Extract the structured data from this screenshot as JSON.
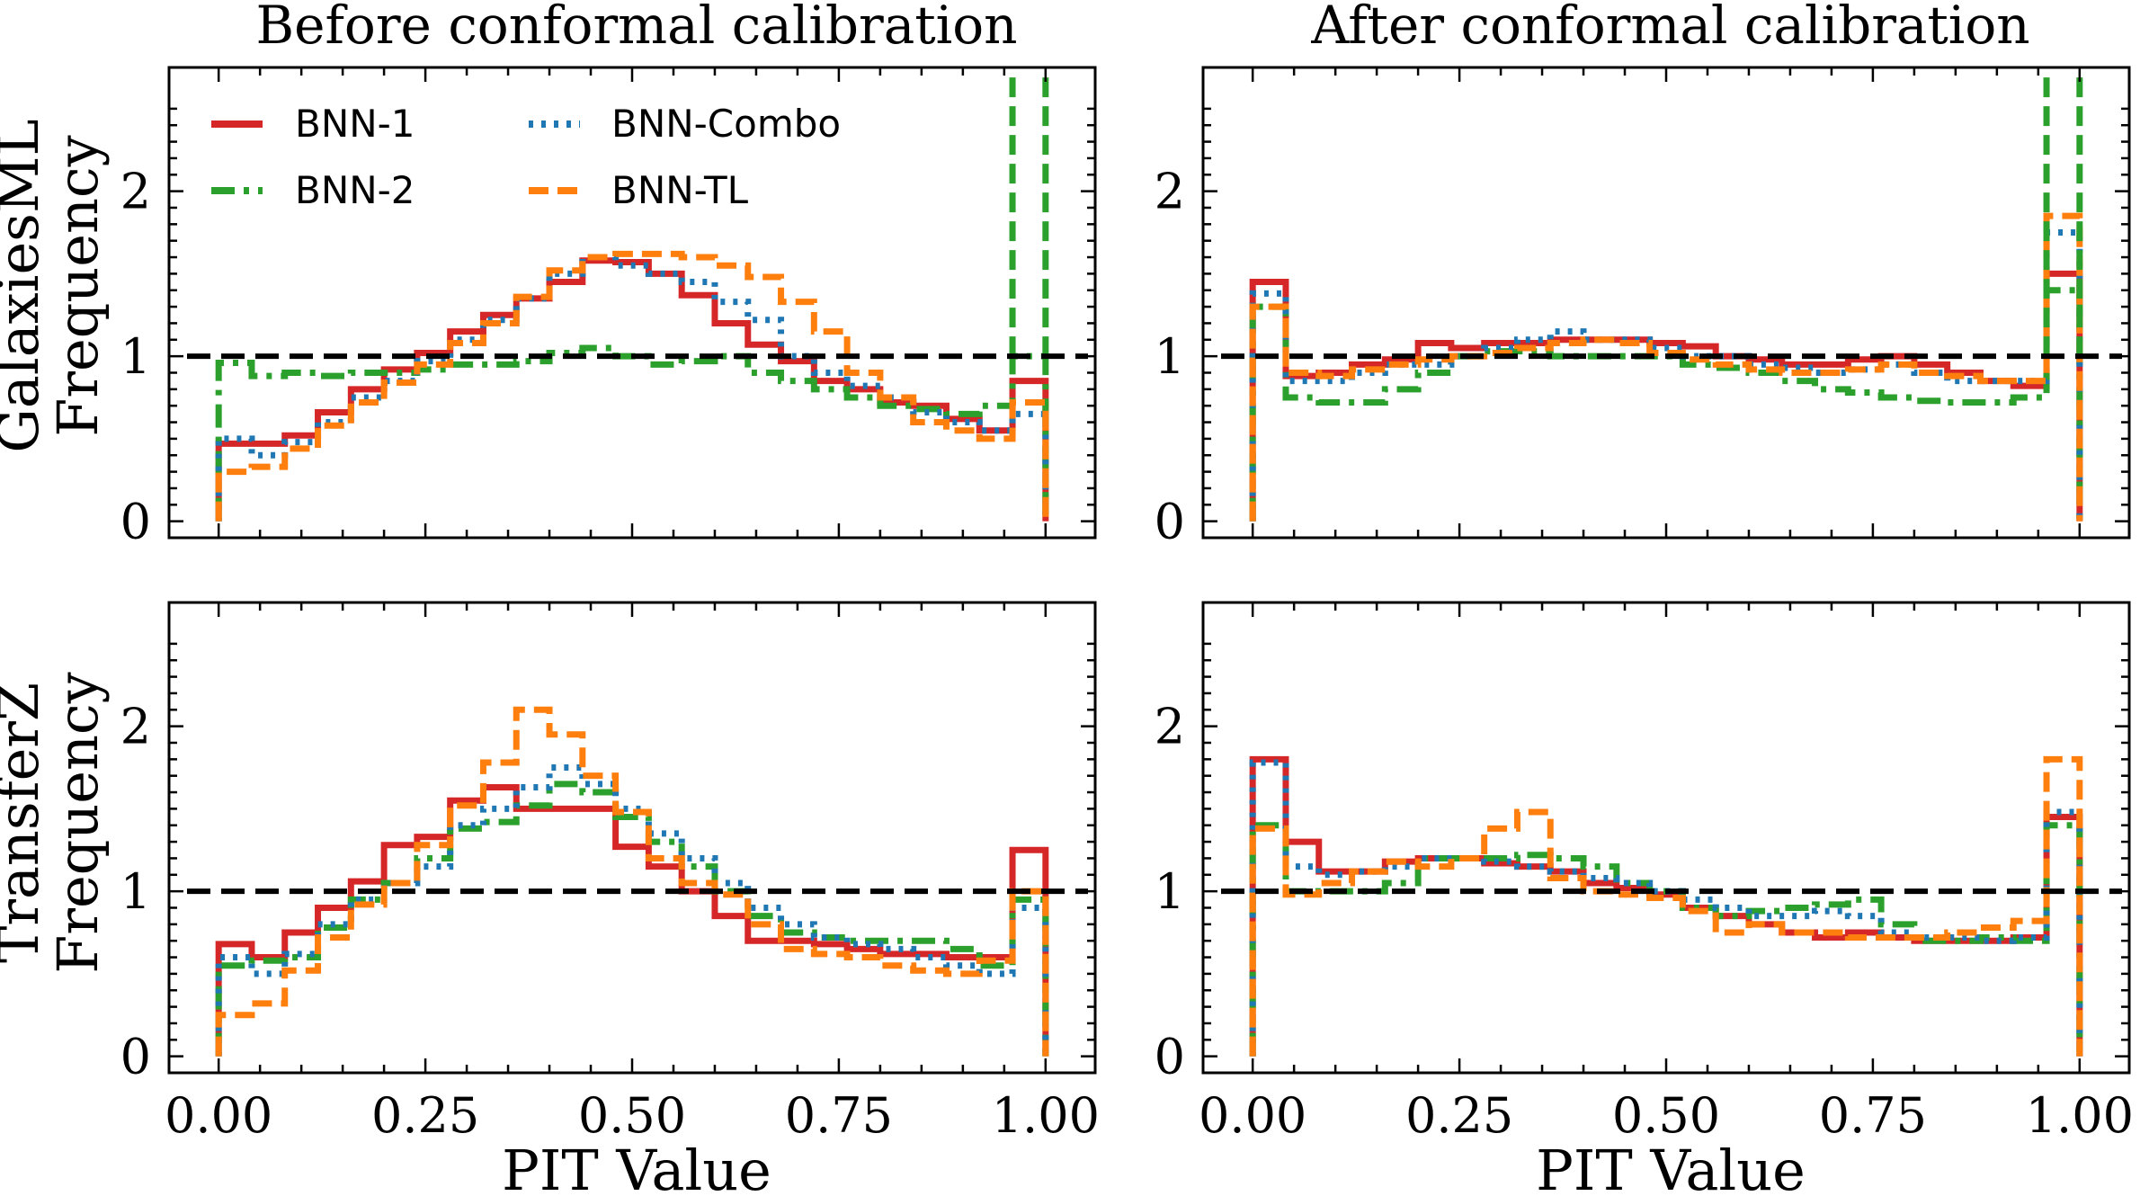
{
  "chart_data": {
    "type": "step-histogram",
    "columns": {
      "left_title": "Before conformal calibration",
      "right_title": "After conformal calibration"
    },
    "rows": {
      "top_ylabel": [
        "GalaxiesML",
        "Frequency"
      ],
      "bottom_ylabel": [
        "TransferZ",
        "Frequency"
      ]
    },
    "xlabel": "PIT Value",
    "xlim": [
      -0.06,
      1.06
    ],
    "ylim": [
      -0.1,
      2.75
    ],
    "xticks": [
      "0.00",
      "0.25",
      "0.50",
      "0.75",
      "1.00"
    ],
    "yticks": [
      "0",
      "1",
      "2"
    ],
    "reference_line": 1.0,
    "legend": [
      {
        "name": "BNN-1",
        "style": "solid",
        "color": "#d62728"
      },
      {
        "name": "BNN-2",
        "style": "dashdot",
        "color": "#2ca02c"
      },
      {
        "name": "BNN-Combo",
        "style": "dotted",
        "color": "#1f77b4"
      },
      {
        "name": "BNN-TL",
        "style": "dash",
        "color": "#ff7f0e"
      }
    ],
    "panels": [
      {
        "id": "galaxiesml-before",
        "edges": [
          0.0,
          0.04,
          0.08,
          0.12,
          0.16,
          0.2,
          0.24,
          0.28,
          0.32,
          0.36,
          0.4,
          0.44,
          0.48,
          0.52,
          0.56,
          0.6,
          0.64,
          0.68,
          0.72,
          0.76,
          0.8,
          0.84,
          0.88,
          0.92,
          0.96,
          1.0
        ],
        "series": [
          {
            "name": "BNN-1",
            "values": [
              0.47,
              0.47,
              0.52,
              0.66,
              0.8,
              0.92,
              1.02,
              1.15,
              1.25,
              1.35,
              1.45,
              1.58,
              1.57,
              1.5,
              1.37,
              1.2,
              1.07,
              0.97,
              0.85,
              0.8,
              0.72,
              0.7,
              0.62,
              0.55,
              0.85
            ]
          },
          {
            "name": "BNN-2",
            "values": [
              0.96,
              0.88,
              0.9,
              0.88,
              0.9,
              0.9,
              0.92,
              0.95,
              0.95,
              0.97,
              1.02,
              1.05,
              1.0,
              0.95,
              0.97,
              1.0,
              0.9,
              0.85,
              0.8,
              0.75,
              0.7,
              0.68,
              0.65,
              0.7,
              1.0
            ]
          },
          {
            "name": "BNN-Combo",
            "values": [
              0.5,
              0.4,
              0.48,
              0.6,
              0.75,
              0.85,
              0.97,
              1.1,
              1.22,
              1.35,
              1.5,
              1.6,
              1.55,
              1.5,
              1.45,
              1.33,
              1.22,
              1.0,
              0.9,
              0.82,
              0.75,
              0.66,
              0.6,
              0.55,
              0.65
            ]
          },
          {
            "name": "BNN-TL",
            "values": [
              0.3,
              0.33,
              0.44,
              0.58,
              0.72,
              0.84,
              0.95,
              1.08,
              1.2,
              1.36,
              1.52,
              1.6,
              1.62,
              1.62,
              1.6,
              1.55,
              1.48,
              1.33,
              1.15,
              0.9,
              0.75,
              0.6,
              0.55,
              0.5,
              0.72
            ]
          }
        ],
        "spike": {
          "series": "BNN-2",
          "x": [
            0.96,
            1.0
          ]
        }
      },
      {
        "id": "galaxiesml-after",
        "edges": [
          0.0,
          0.04,
          0.08,
          0.12,
          0.16,
          0.2,
          0.24,
          0.28,
          0.32,
          0.36,
          0.4,
          0.44,
          0.48,
          0.52,
          0.56,
          0.6,
          0.64,
          0.68,
          0.72,
          0.76,
          0.8,
          0.84,
          0.88,
          0.92,
          0.96,
          1.0
        ],
        "series": [
          {
            "name": "BNN-1",
            "values": [
              1.45,
              0.88,
              0.9,
              0.95,
              0.98,
              1.08,
              1.05,
              1.08,
              1.08,
              1.1,
              1.1,
              1.1,
              1.08,
              1.06,
              1.0,
              0.98,
              0.95,
              0.95,
              0.98,
              1.0,
              0.95,
              0.9,
              0.85,
              0.82,
              1.5
            ]
          },
          {
            "name": "BNN-2",
            "values": [
              1.3,
              0.75,
              0.72,
              0.72,
              0.8,
              0.9,
              1.0,
              1.03,
              1.03,
              1.0,
              1.0,
              1.0,
              1.0,
              0.95,
              0.93,
              0.9,
              0.85,
              0.8,
              0.78,
              0.75,
              0.73,
              0.72,
              0.72,
              0.75,
              1.4
            ]
          },
          {
            "name": "BNN-Combo",
            "values": [
              1.38,
              0.85,
              0.85,
              0.9,
              0.95,
              0.95,
              1.0,
              1.05,
              1.1,
              1.15,
              1.1,
              1.1,
              1.05,
              1.0,
              1.0,
              0.95,
              0.93,
              0.9,
              0.92,
              0.95,
              0.9,
              0.85,
              0.85,
              0.85,
              1.75
            ]
          },
          {
            "name": "BNN-TL",
            "values": [
              1.3,
              0.9,
              0.88,
              0.92,
              0.95,
              0.98,
              1.0,
              1.02,
              1.05,
              1.08,
              1.1,
              1.08,
              1.02,
              0.98,
              0.95,
              0.92,
              0.9,
              0.9,
              0.92,
              0.95,
              0.9,
              0.88,
              0.85,
              0.85,
              1.85
            ]
          }
        ],
        "spike": {
          "series": "BNN-2",
          "x": [
            0.96,
            1.0
          ]
        }
      },
      {
        "id": "transferz-before",
        "edges": [
          0.0,
          0.04,
          0.08,
          0.12,
          0.16,
          0.2,
          0.24,
          0.28,
          0.32,
          0.36,
          0.4,
          0.44,
          0.48,
          0.52,
          0.56,
          0.6,
          0.64,
          0.68,
          0.72,
          0.76,
          0.8,
          0.84,
          0.88,
          0.92,
          0.96,
          1.0
        ],
        "series": [
          {
            "name": "BNN-1",
            "values": [
              0.68,
              0.6,
              0.75,
              0.9,
              1.06,
              1.28,
              1.33,
              1.55,
              1.63,
              1.5,
              1.5,
              1.5,
              1.27,
              1.15,
              1.0,
              0.85,
              0.7,
              0.7,
              0.68,
              0.65,
              0.62,
              0.62,
              0.6,
              0.6,
              1.25
            ]
          },
          {
            "name": "BNN-2",
            "values": [
              0.55,
              0.58,
              0.6,
              0.78,
              0.95,
              1.05,
              1.2,
              1.38,
              1.42,
              1.52,
              1.65,
              1.6,
              1.45,
              1.3,
              1.15,
              1.0,
              0.85,
              0.75,
              0.72,
              0.7,
              0.7,
              0.7,
              0.65,
              0.55,
              0.95
            ]
          },
          {
            "name": "BNN-Combo",
            "values": [
              0.6,
              0.5,
              0.62,
              0.8,
              0.95,
              1.05,
              1.15,
              1.4,
              1.5,
              1.63,
              1.75,
              1.65,
              1.5,
              1.35,
              1.2,
              1.05,
              0.9,
              0.8,
              0.72,
              0.68,
              0.65,
              0.6,
              0.55,
              0.5,
              0.9
            ]
          },
          {
            "name": "BNN-TL",
            "values": [
              0.25,
              0.32,
              0.52,
              0.72,
              0.92,
              1.05,
              1.28,
              1.52,
              1.78,
              2.1,
              1.95,
              1.7,
              1.48,
              1.2,
              1.05,
              0.98,
              0.8,
              0.65,
              0.62,
              0.6,
              0.55,
              0.52,
              0.5,
              0.58,
              1.0
            ]
          }
        ]
      },
      {
        "id": "transferz-after",
        "edges": [
          0.0,
          0.04,
          0.08,
          0.12,
          0.16,
          0.2,
          0.24,
          0.28,
          0.32,
          0.36,
          0.4,
          0.44,
          0.48,
          0.52,
          0.56,
          0.6,
          0.64,
          0.68,
          0.72,
          0.76,
          0.8,
          0.84,
          0.88,
          0.92,
          0.96,
          1.0
        ],
        "series": [
          {
            "name": "BNN-1",
            "values": [
              1.8,
              1.3,
              1.12,
              1.12,
              1.18,
              1.2,
              1.2,
              1.17,
              1.15,
              1.12,
              1.05,
              1.02,
              0.98,
              0.9,
              0.85,
              0.8,
              0.75,
              0.72,
              0.75,
              0.72,
              0.7,
              0.7,
              0.7,
              0.72,
              1.45
            ]
          },
          {
            "name": "BNN-2",
            "values": [
              1.4,
              1.0,
              1.0,
              1.0,
              1.05,
              1.2,
              1.2,
              1.2,
              1.22,
              1.2,
              1.15,
              1.05,
              1.0,
              0.9,
              0.85,
              0.88,
              0.9,
              0.92,
              0.95,
              0.8,
              0.7,
              0.7,
              0.72,
              0.7,
              1.4
            ]
          },
          {
            "name": "BNN-Combo",
            "values": [
              1.78,
              1.15,
              1.1,
              1.12,
              1.15,
              1.2,
              1.2,
              1.18,
              1.15,
              1.12,
              1.08,
              1.05,
              1.0,
              0.95,
              0.9,
              0.85,
              0.85,
              0.88,
              0.85,
              0.75,
              0.72,
              0.72,
              0.7,
              0.72,
              1.48
            ]
          },
          {
            "name": "BNN-TL",
            "values": [
              1.38,
              0.98,
              1.05,
              1.12,
              1.18,
              1.15,
              1.2,
              1.38,
              1.48,
              1.08,
              1.0,
              0.98,
              0.96,
              0.88,
              0.75,
              0.8,
              0.75,
              0.75,
              0.72,
              0.72,
              0.72,
              0.75,
              0.78,
              0.82,
              1.8
            ]
          }
        ]
      }
    ]
  }
}
